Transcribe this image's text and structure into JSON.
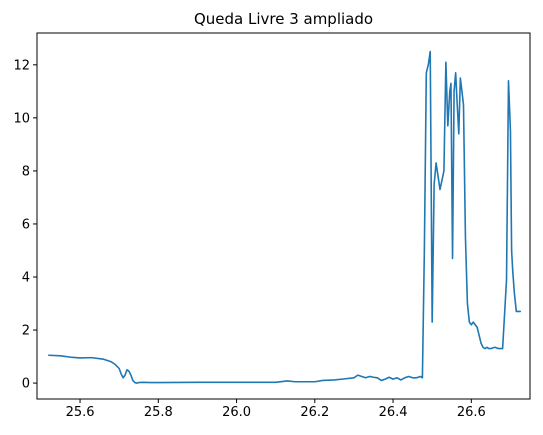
{
  "chart_data": {
    "type": "line",
    "title": "Queda Livre 3 ampliado",
    "xlabel": "",
    "ylabel": "",
    "xlim": [
      25.49,
      26.75
    ],
    "ylim": [
      -0.6,
      13.2
    ],
    "grid": false,
    "x_ticks": [
      25.6,
      25.8,
      26.0,
      26.2,
      26.4,
      26.6
    ],
    "x_tick_labels": [
      "25.6",
      "25.8",
      "26.0",
      "26.2",
      "26.4",
      "26.6"
    ],
    "y_ticks": [
      0,
      2,
      4,
      6,
      8,
      10,
      12
    ],
    "y_tick_labels": [
      "0",
      "2",
      "4",
      "6",
      "8",
      "10",
      "12"
    ],
    "series": [
      {
        "color": "#1f77b4",
        "x": [
          25.52,
          25.55,
          25.58,
          25.6,
          25.63,
          25.65,
          25.66,
          25.67,
          25.68,
          25.69,
          25.7,
          25.705,
          25.71,
          25.715,
          25.72,
          25.725,
          25.73,
          25.735,
          25.74,
          25.745,
          25.75,
          25.76,
          25.78,
          25.8,
          25.9,
          26.0,
          26.1,
          26.13,
          26.15,
          26.2,
          26.22,
          26.25,
          26.27,
          26.3,
          26.31,
          26.32,
          26.33,
          26.34,
          26.35,
          26.36,
          26.37,
          26.38,
          26.39,
          26.4,
          26.41,
          26.42,
          26.43,
          26.44,
          26.45,
          26.46,
          26.47,
          26.475,
          26.48,
          26.485,
          26.49,
          26.495,
          26.5,
          26.505,
          26.51,
          26.515,
          26.52,
          26.53,
          26.535,
          26.54,
          26.545,
          26.548,
          26.552,
          26.556,
          26.56,
          26.564,
          26.568,
          26.572,
          26.576,
          26.58,
          26.585,
          26.59,
          26.595,
          26.6,
          26.605,
          26.61,
          26.615,
          26.62,
          26.625,
          26.63,
          26.635,
          26.64,
          26.645,
          26.65,
          26.66,
          26.67,
          26.68,
          26.69,
          26.695,
          26.7,
          26.703,
          26.706,
          26.71,
          26.715,
          26.72,
          26.725
        ],
        "y": [
          1.05,
          1.03,
          0.97,
          0.95,
          0.96,
          0.92,
          0.9,
          0.85,
          0.8,
          0.7,
          0.55,
          0.35,
          0.2,
          0.3,
          0.5,
          0.45,
          0.3,
          0.1,
          0.02,
          0.0,
          0.02,
          0.03,
          0.02,
          0.02,
          0.03,
          0.03,
          0.03,
          0.08,
          0.05,
          0.05,
          0.1,
          0.12,
          0.15,
          0.2,
          0.3,
          0.25,
          0.2,
          0.25,
          0.22,
          0.2,
          0.1,
          0.15,
          0.22,
          0.15,
          0.2,
          0.12,
          0.2,
          0.25,
          0.2,
          0.2,
          0.25,
          0.2,
          5.0,
          11.7,
          12.0,
          12.5,
          2.3,
          7.5,
          8.3,
          7.8,
          7.3,
          8.0,
          12.1,
          9.7,
          11.0,
          11.3,
          4.7,
          11.0,
          11.7,
          10.5,
          9.4,
          11.5,
          11.0,
          10.5,
          5.5,
          3.0,
          2.3,
          2.2,
          2.3,
          2.2,
          2.1,
          1.8,
          1.5,
          1.35,
          1.3,
          1.35,
          1.3,
          1.3,
          1.35,
          1.3,
          1.3,
          3.9,
          11.4,
          9.5,
          5.0,
          4.2,
          3.4,
          2.7,
          2.7,
          2.7
        ]
      }
    ]
  }
}
